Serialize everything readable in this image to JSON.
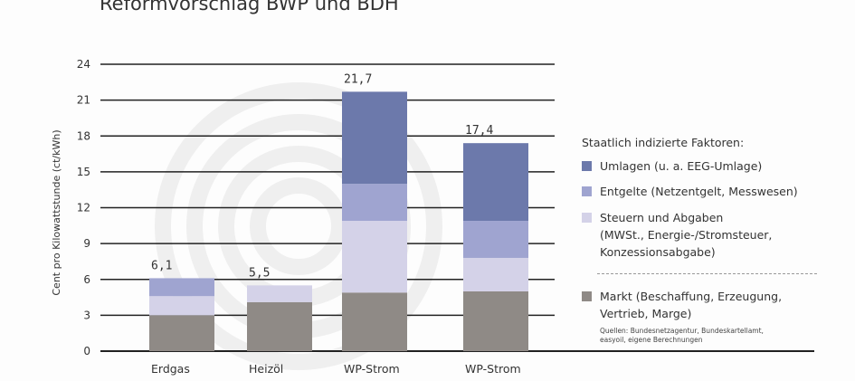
{
  "chart_data": {
    "type": "bar",
    "stacked": true,
    "title": "Reformvorschlag BWP und BDH",
    "ylabel": "Cent pro Kilowattstunde (ct/kWh)",
    "ylim": [
      0,
      24
    ],
    "yticks": [
      0,
      3,
      6,
      9,
      12,
      15,
      18,
      21,
      24
    ],
    "grid": true,
    "categories": [
      "Erdgas",
      "Heizöl",
      "WP-Strom",
      "WP-Strom"
    ],
    "totals_labels": [
      "6,1",
      "5,5",
      "21,7",
      "17,4"
    ],
    "series": [
      {
        "name": "Markt (Beschaffung, Erzeugung, Vertrieb, Marge)",
        "color": "#8f8a86",
        "values": [
          3.0,
          4.1,
          4.9,
          5.0
        ]
      },
      {
        "name": "Steuern und Abgaben (MWSt., Energie-/Stromsteuer, Konzessionsabgabe)",
        "color": "#d4d2e8",
        "values": [
          1.6,
          1.4,
          6.0,
          2.8
        ]
      },
      {
        "name": "Entgelte (Netzentgelt, Messwesen)",
        "color": "#9fa4d0",
        "values": [
          1.5,
          0,
          3.1,
          3.1
        ]
      },
      {
        "name": "Umlagen (u. a. EEG-Umlage)",
        "color": "#6c79ab",
        "values": [
          0,
          0,
          7.7,
          6.5
        ]
      }
    ],
    "legend": {
      "placement": "right",
      "header": "Staatlich indizierte Faktoren:",
      "items": [
        {
          "lines": [
            "Umlagen (u. a. EEG-Umlage)"
          ],
          "color": "#6c79ab"
        },
        {
          "lines": [
            "Entgelte (Netzentgelt, Messwesen)"
          ],
          "color": "#9fa4d0"
        },
        {
          "lines": [
            "Steuern und Abgaben",
            "(MWSt., Energie-/Stromsteuer,",
            "Konzessionsabgabe)"
          ],
          "color": "#d4d2e8"
        },
        {
          "lines": [
            "Markt (Beschaffung, Erzeugung,",
            "Vertrieb, Marge)"
          ],
          "color": "#8f8a86"
        }
      ],
      "source": [
        "Quellen: Bundesnetzagentur, Bundeskartellamt,",
        "easyoil, eigene Berechnungen"
      ]
    }
  }
}
